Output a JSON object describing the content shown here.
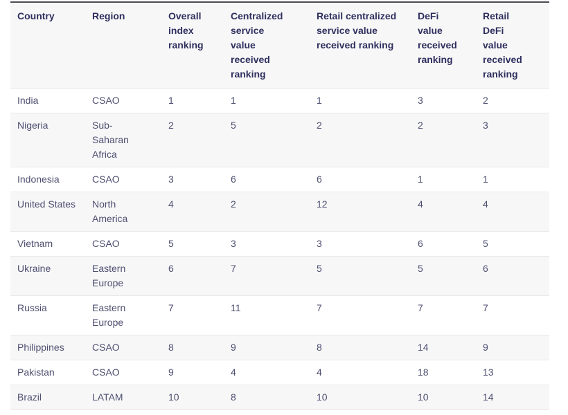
{
  "colors": {
    "background": "#ffffff",
    "header_text": "#2f2f5e",
    "body_text": "#4e4e70",
    "stripe_row": "#f7f7f8",
    "row_border": "#e8e8eb",
    "table_top_border": "#4b4b55"
  },
  "chart_data": {
    "type": "table",
    "columns": [
      "Country",
      "Region",
      "Overall index ranking",
      "Centralized service value received ranking",
      "Retail centralized service value received ranking",
      "DeFi value received ranking",
      "Retail DeFi value received ranking"
    ],
    "rows": [
      [
        "India",
        "CSAO",
        "1",
        "1",
        "1",
        "3",
        "2"
      ],
      [
        "Nigeria",
        "Sub-Saharan Africa",
        "2",
        "5",
        "2",
        "2",
        "3"
      ],
      [
        "Indonesia",
        "CSAO",
        "3",
        "6",
        "6",
        "1",
        "1"
      ],
      [
        "United States",
        "North America",
        "4",
        "2",
        "12",
        "4",
        "4"
      ],
      [
        "Vietnam",
        "CSAO",
        "5",
        "3",
        "3",
        "6",
        "5"
      ],
      [
        "Ukraine",
        "Eastern Europe",
        "6",
        "7",
        "5",
        "5",
        "6"
      ],
      [
        "Russia",
        "Eastern Europe",
        "7",
        "11",
        "7",
        "7",
        "7"
      ],
      [
        "Philippines",
        "CSAO",
        "8",
        "9",
        "8",
        "14",
        "9"
      ],
      [
        "Pakistan",
        "CSAO",
        "9",
        "4",
        "4",
        "18",
        "13"
      ],
      [
        "Brazil",
        "LATAM",
        "10",
        "8",
        "10",
        "10",
        "14"
      ]
    ]
  }
}
